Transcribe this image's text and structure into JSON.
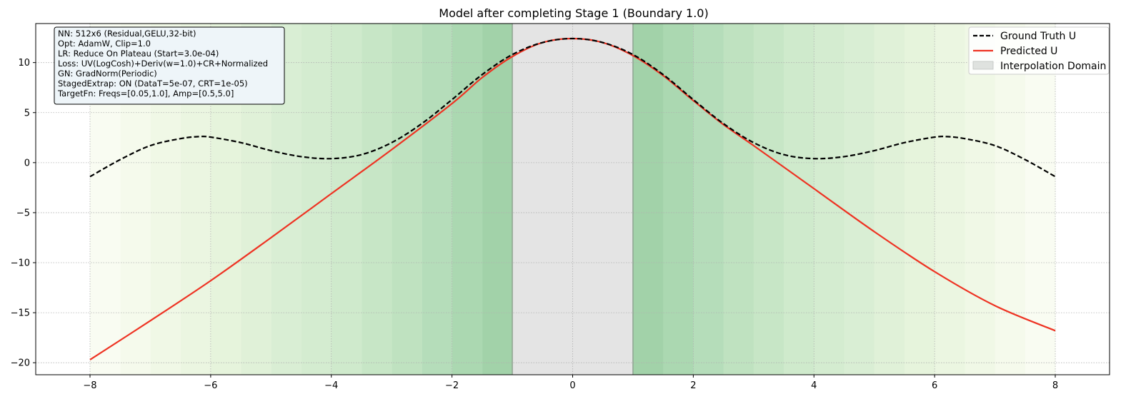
{
  "chart_data": {
    "type": "line",
    "title": "Model after completing Stage 1 (Boundary 1.0)",
    "xlabel": "",
    "ylabel": "",
    "xlim": [
      -8.9,
      8.9
    ],
    "ylim": [
      -21.2,
      13.9
    ],
    "xticks": [
      -8,
      -6,
      -4,
      -2,
      0,
      2,
      4,
      6,
      8
    ],
    "yticks": [
      -20,
      -15,
      -10,
      -5,
      0,
      5,
      10
    ],
    "tick_labels_x": [
      "−8",
      "−6",
      "−4",
      "−2",
      "0",
      "2",
      "4",
      "6",
      "8"
    ],
    "tick_labels_y": [
      "−20",
      "−15",
      "−10",
      "−5",
      "0",
      "5",
      "10"
    ],
    "grid": true,
    "legend_position": "top-right",
    "interpolation_domain": [
      -1.0,
      1.0
    ],
    "shaded_stages": [
      {
        "range": [
          -1.5,
          -1.0
        ],
        "color": "#a2d2a9"
      },
      {
        "range": [
          1.0,
          1.5
        ],
        "color": "#a2d2a9"
      },
      {
        "range": [
          -2.0,
          -1.5
        ],
        "color": "#abd8b1"
      },
      {
        "range": [
          1.5,
          2.0
        ],
        "color": "#abd8b1"
      },
      {
        "range": [
          -2.5,
          -2.0
        ],
        "color": "#b5ddba"
      },
      {
        "range": [
          2.0,
          2.5
        ],
        "color": "#b5ddba"
      },
      {
        "range": [
          -3.0,
          -2.5
        ],
        "color": "#bfe2c0"
      },
      {
        "range": [
          2.5,
          3.0
        ],
        "color": "#bfe2c0"
      },
      {
        "range": [
          -3.5,
          -3.0
        ],
        "color": "#c7e6c6"
      },
      {
        "range": [
          3.0,
          3.5
        ],
        "color": "#c7e6c6"
      },
      {
        "range": [
          -4.0,
          -3.5
        ],
        "color": "#cfeacc"
      },
      {
        "range": [
          3.5,
          4.0
        ],
        "color": "#cfeacc"
      },
      {
        "range": [
          -4.5,
          -4.0
        ],
        "color": "#d4ecd0"
      },
      {
        "range": [
          4.0,
          4.5
        ],
        "color": "#d4ecd0"
      },
      {
        "range": [
          -5.0,
          -4.5
        ],
        "color": "#d9eed4"
      },
      {
        "range": [
          4.5,
          5.0
        ],
        "color": "#d9eed4"
      },
      {
        "range": [
          -5.5,
          -5.0
        ],
        "color": "#e0f1d8"
      },
      {
        "range": [
          5.0,
          5.5
        ],
        "color": "#e0f1d8"
      },
      {
        "range": [
          -6.0,
          -5.5
        ],
        "color": "#e6f4dc"
      },
      {
        "range": [
          5.5,
          6.0
        ],
        "color": "#e6f4dc"
      },
      {
        "range": [
          -6.5,
          -6.0
        ],
        "color": "#ebf6e1"
      },
      {
        "range": [
          6.0,
          6.5
        ],
        "color": "#ebf6e1"
      },
      {
        "range": [
          -7.0,
          -6.5
        ],
        "color": "#f0f8e6"
      },
      {
        "range": [
          6.5,
          7.0
        ],
        "color": "#f0f8e6"
      },
      {
        "range": [
          -7.5,
          -7.0
        ],
        "color": "#f5faec"
      },
      {
        "range": [
          7.0,
          7.5
        ],
        "color": "#f5faec"
      },
      {
        "range": [
          -8.0,
          -7.5
        ],
        "color": "#f9fcf2"
      },
      {
        "range": [
          7.5,
          8.0
        ],
        "color": "#f9fcf2"
      }
    ],
    "series": [
      {
        "name": "Ground Truth U",
        "style": "dashed",
        "color": "#000000",
        "x": [
          -8.0,
          -7.5,
          -7.0,
          -6.5,
          -6.2,
          -6.0,
          -5.5,
          -5.0,
          -4.5,
          -4.0,
          -3.5,
          -3.0,
          -2.5,
          -2.0,
          -1.5,
          -1.0,
          -0.5,
          0.0,
          0.5,
          1.0,
          1.5,
          2.0,
          2.5,
          3.0,
          3.5,
          4.0,
          4.5,
          5.0,
          5.5,
          6.0,
          6.2,
          6.5,
          7.0,
          7.5,
          8.0
        ],
        "y": [
          -1.4,
          0.3,
          1.7,
          2.4,
          2.6,
          2.55,
          2.0,
          1.2,
          0.6,
          0.4,
          0.8,
          2.0,
          3.9,
          6.3,
          8.8,
          10.8,
          12.0,
          12.4,
          12.0,
          10.8,
          8.8,
          6.3,
          3.9,
          2.0,
          0.8,
          0.4,
          0.6,
          1.2,
          2.0,
          2.55,
          2.6,
          2.4,
          1.7,
          0.3,
          -1.4
        ]
      },
      {
        "name": "Predicted U",
        "style": "solid",
        "color": "#ee3323",
        "x": [
          -8.0,
          -7.0,
          -6.0,
          -5.0,
          -4.0,
          -3.0,
          -2.0,
          -1.5,
          -1.0,
          -0.5,
          0.0,
          0.5,
          1.0,
          1.5,
          2.0,
          2.5,
          3.0,
          4.0,
          5.0,
          6.0,
          7.0,
          8.0
        ],
        "y": [
          -19.7,
          -15.8,
          -11.8,
          -7.5,
          -3.1,
          1.3,
          5.9,
          8.5,
          10.6,
          12.0,
          12.4,
          12.0,
          10.7,
          8.7,
          6.2,
          3.8,
          1.7,
          -2.6,
          -6.9,
          -10.9,
          -14.3,
          -16.8
        ]
      }
    ],
    "legend": [
      "Ground Truth U",
      "Predicted U",
      "Interpolation Domain"
    ]
  },
  "info_box": {
    "lines": [
      "NN: 512x6 (Residual,GELU,32-bit)",
      "Opt: AdamW, Clip=1.0",
      "LR: Reduce On Plateau (Start=3.0e-04)",
      "Loss: UV(LogCosh)+Deriv(w=1.0)+CR+Normalized",
      "GN: GradNorm(Periodic)",
      "StagedExtrap: ON (DataT=5e-07, CRT=1e-05)",
      "TargetFn: Freqs=[0.05,1.0], Amp=[0.5,5.0]"
    ]
  },
  "colors": {
    "ground_truth": "#000000",
    "predicted": "#ee3323",
    "interpolation": "#e4e4e4",
    "info_box_bg": "#eef5f9"
  }
}
